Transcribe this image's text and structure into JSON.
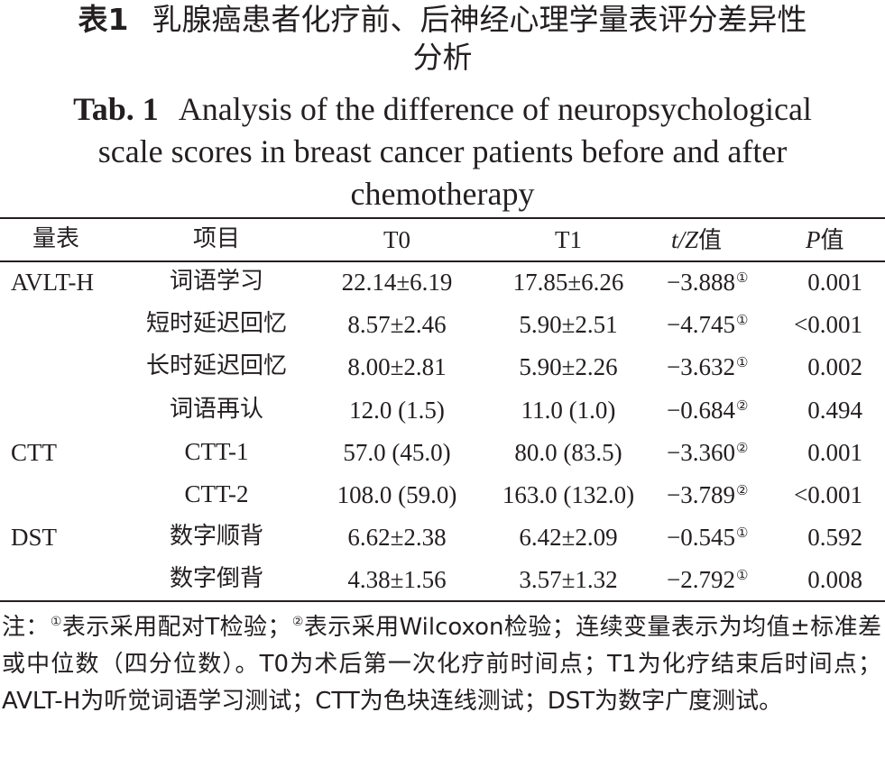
{
  "title_cn": {
    "label": "表1",
    "line1": "乳腺癌患者化疗前、后神经心理学量表评分差异性",
    "line2": "分析"
  },
  "title_en": {
    "label": "Tab. 1",
    "line1": "Analysis of the difference of neuropsychological",
    "line2": "scale scores in breast cancer patients before and after",
    "line3": "chemotherapy"
  },
  "table": {
    "headers": {
      "scale": "量表",
      "item": "项目",
      "t0": "T0",
      "t1": "T1",
      "stat_italic": "t/Z",
      "stat_suffix": "值",
      "p_italic": "P",
      "p_suffix": "值"
    },
    "rows": [
      {
        "scale": "AVLT-H",
        "item": "词语学习",
        "t0": "22.14±6.19",
        "t1": "17.85±6.26",
        "stat": "−3.888",
        "mark": "①",
        "p": "0.001"
      },
      {
        "scale": "",
        "item": "短时延迟回忆",
        "t0": "8.57±2.46",
        "t1": "5.90±2.51",
        "stat": "−4.745",
        "mark": "①",
        "p": "<0.001"
      },
      {
        "scale": "",
        "item": "长时延迟回忆",
        "t0": "8.00±2.81",
        "t1": "5.90±2.26",
        "stat": "−3.632",
        "mark": "①",
        "p": "0.002"
      },
      {
        "scale": "",
        "item": "词语再认",
        "t0": "12.0 (1.5)",
        "t1": "11.0 (1.0)",
        "stat": "−0.684",
        "mark": "②",
        "p": "0.494"
      },
      {
        "scale": "CTT",
        "item": "CTT-1",
        "t0": "57.0 (45.0)",
        "t1": "80.0 (83.5)",
        "stat": "−3.360",
        "mark": "②",
        "p": "0.001"
      },
      {
        "scale": "",
        "item": "CTT-2",
        "t0": "108.0 (59.0)",
        "t1": "163.0 (132.0)",
        "stat": "−3.789",
        "mark": "②",
        "p": "<0.001"
      },
      {
        "scale": "DST",
        "item": "数字顺背",
        "t0": "6.62±2.38",
        "t1": "6.42±2.09",
        "stat": "−0.545",
        "mark": "①",
        "p": "0.592"
      },
      {
        "scale": "",
        "item": "数字倒背",
        "t0": "4.38±1.56",
        "t1": "3.57±1.32",
        "stat": "−2.792",
        "mark": "①",
        "p": "0.008"
      }
    ]
  },
  "note": {
    "prefix": "注：",
    "mark1": "①",
    "part1": "表示采用配对T检验；",
    "mark2": "②",
    "part2": "表示采用Wilcoxon检验；连续变量表示为均值±标准差或中位数（四分位数）。T0为术后第一次化疗前时间点；T1为化疗结束后时间点；AVLT-H为听觉词语学习测试；CTT为色块连线测试；DST为数字广度测试。"
  }
}
